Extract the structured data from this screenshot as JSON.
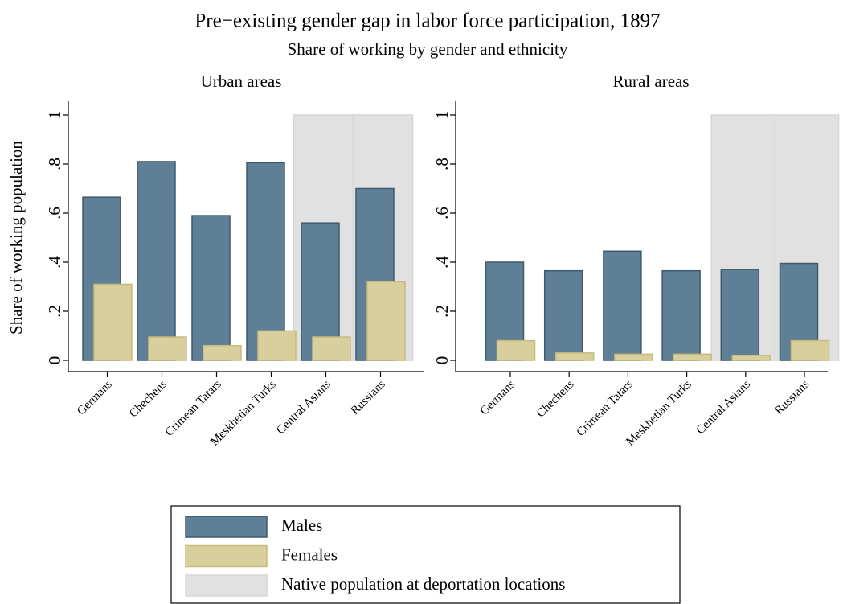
{
  "title": "Pre−existing gender gap in labor force participation, 1897",
  "subtitle": "Share of working by gender and ethnicity",
  "chart_data": [
    {
      "type": "bar",
      "title": "Urban areas",
      "ylabel": "Share of working population",
      "categories": [
        "Germans",
        "Chechens",
        "Crimean Tatars",
        "Meskhetian Turks",
        "Central Asians",
        "Russians"
      ],
      "ylim": [
        0,
        1
      ],
      "yticks": [
        0,
        {
          "value": 0.2,
          "label": ".2"
        },
        {
          "value": 0.4,
          "label": ".4"
        },
        {
          "value": 0.6,
          "label": ".6"
        },
        {
          "value": 0.8,
          "label": ".8"
        },
        1
      ],
      "series": [
        {
          "name": "Males",
          "color": "#5f7f96",
          "values": [
            0.665,
            0.81,
            0.59,
            0.805,
            0.56,
            0.7
          ]
        },
        {
          "name": "Females",
          "color": "#d8cf9c",
          "values": [
            0.31,
            0.095,
            0.06,
            0.12,
            0.095,
            0.32
          ]
        },
        {
          "name": "Native population at deportation locations",
          "color": "#e1e1e1",
          "values": [
            null,
            null,
            null,
            null,
            1,
            1
          ]
        }
      ]
    },
    {
      "type": "bar",
      "title": "Rural areas",
      "categories": [
        "Germans",
        "Chechens",
        "Crimean Tatars",
        "Meskhetian Turks",
        "Central Asians",
        "Russians"
      ],
      "ylim": [
        0,
        1
      ],
      "yticks": [
        0,
        {
          "value": 0.2,
          "label": ".2"
        },
        {
          "value": 0.4,
          "label": ".4"
        },
        {
          "value": 0.6,
          "label": ".6"
        },
        {
          "value": 0.8,
          "label": ".8"
        },
        1
      ],
      "series": [
        {
          "name": "Males",
          "color": "#5f7f96",
          "values": [
            0.4,
            0.365,
            0.445,
            0.365,
            0.37,
            0.395
          ]
        },
        {
          "name": "Females",
          "color": "#d8cf9c",
          "values": [
            0.08,
            0.03,
            0.025,
            0.025,
            0.02,
            0.08
          ]
        },
        {
          "name": "Native population at deportation locations",
          "color": "#e1e1e1",
          "values": [
            null,
            null,
            null,
            null,
            1,
            1
          ]
        }
      ]
    }
  ]
}
